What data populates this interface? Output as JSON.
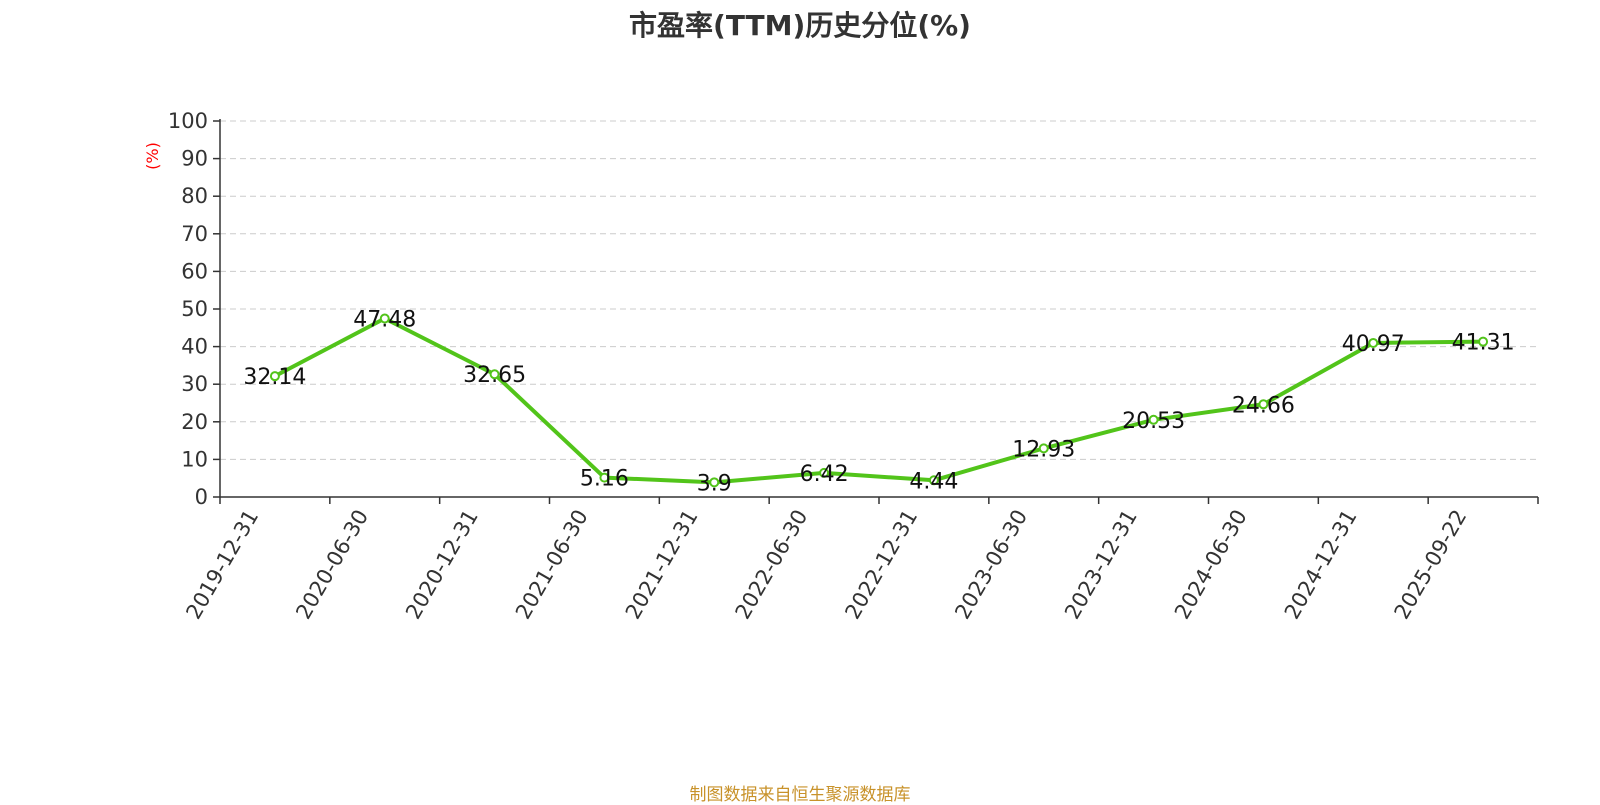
{
  "chart_data": {
    "type": "line",
    "title": "市盈率(TTM)历史分位(%)",
    "ylabel": "(%)",
    "xlabel": "",
    "categories": [
      "2019-12-31",
      "2020-06-30",
      "2020-12-31",
      "2021-06-30",
      "2021-12-31",
      "2022-06-30",
      "2022-12-31",
      "2023-06-30",
      "2023-12-31",
      "2024-06-30",
      "2024-12-31",
      "2025-09-22"
    ],
    "values": [
      32.14,
      47.48,
      32.65,
      5.16,
      3.9,
      6.42,
      4.44,
      12.93,
      20.53,
      24.66,
      40.97,
      41.31
    ],
    "data_labels": [
      "32.14",
      "47.48",
      "32.65",
      "5.16",
      "3.9",
      "6.42",
      "4.44",
      "12.93",
      "20.53",
      "24.66",
      "40.97",
      "41.31"
    ],
    "ylim": [
      0,
      100
    ],
    "yticks": [
      "0",
      "10",
      "20",
      "30",
      "40",
      "50",
      "60",
      "70",
      "80",
      "90",
      "100"
    ],
    "grid": true,
    "legend": "none",
    "colors": {
      "line": "#52c41a",
      "axis": "#333333",
      "grid": "#cccccc",
      "ylabel": "#ff0000"
    }
  },
  "source_note": "制图数据来自恒生聚源数据库"
}
